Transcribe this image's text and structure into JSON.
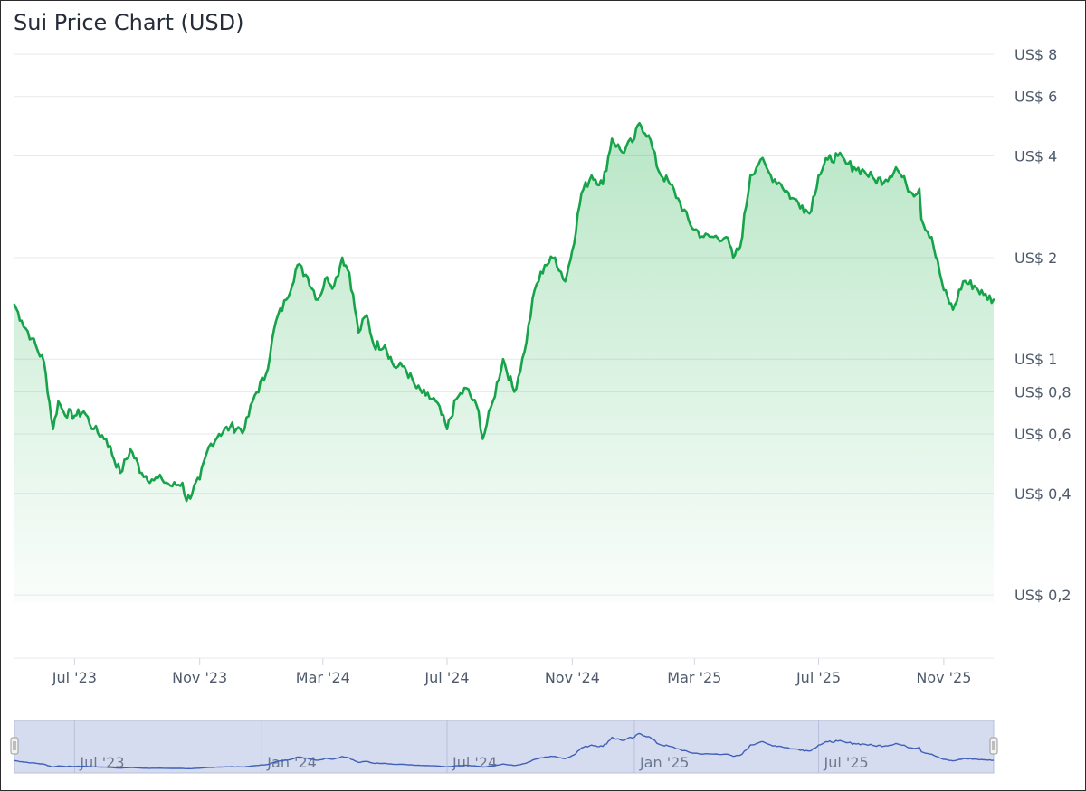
{
  "title": "Sui Price Chart (USD)",
  "colors": {
    "line": "#16a34a",
    "fill": "#22b14c",
    "grid": "#e6e9ee",
    "navigator_bg": "#d6dcef",
    "navigator_line": "#3f5fb8"
  },
  "chart_data": {
    "type": "line",
    "title": "Sui Price Chart (USD)",
    "xlabel": "",
    "ylabel": "",
    "yscale": "log",
    "ylim": [
      0.13,
      9
    ],
    "xlim": [
      "2023-05-03",
      "2025-12-20"
    ],
    "grid": true,
    "y_ticks": [
      {
        "value": 8,
        "label": "US$ 8"
      },
      {
        "value": 6,
        "label": "US$ 6"
      },
      {
        "value": 4,
        "label": "US$ 4"
      },
      {
        "value": 2,
        "label": "US$ 2"
      },
      {
        "value": 1,
        "label": "US$ 1"
      },
      {
        "value": 0.8,
        "label": "US$ 0,8"
      },
      {
        "value": 0.6,
        "label": "US$ 0,6"
      },
      {
        "value": 0.4,
        "label": "US$ 0,4"
      },
      {
        "value": 0.2,
        "label": "US$ 0,2"
      }
    ],
    "x_ticks": [
      {
        "date": "2023-07-01",
        "label": "Jul '23"
      },
      {
        "date": "2023-11-01",
        "label": "Nov '23"
      },
      {
        "date": "2024-03-01",
        "label": "Mar '24"
      },
      {
        "date": "2024-07-01",
        "label": "Jul '24"
      },
      {
        "date": "2024-11-01",
        "label": "Nov '24"
      },
      {
        "date": "2025-03-01",
        "label": "Mar '25"
      },
      {
        "date": "2025-07-01",
        "label": "Jul '25"
      },
      {
        "date": "2025-11-01",
        "label": "Nov '25"
      }
    ],
    "series": [
      {
        "x": [
          "2023-05-03",
          "2023-05-10",
          "2023-05-20",
          "2023-06-01",
          "2023-06-10",
          "2023-06-15",
          "2023-06-20",
          "2023-07-01",
          "2023-07-10",
          "2023-07-20",
          "2023-08-01",
          "2023-08-15",
          "2023-08-25",
          "2023-09-05",
          "2023-09-15",
          "2023-09-25",
          "2023-10-05",
          "2023-10-15",
          "2023-10-19",
          "2023-11-01",
          "2023-11-10",
          "2023-11-20",
          "2023-12-01",
          "2023-12-15",
          "2023-12-25",
          "2024-01-05",
          "2024-01-15",
          "2024-01-25",
          "2024-02-05",
          "2024-02-15",
          "2024-02-25",
          "2024-03-05",
          "2024-03-12",
          "2024-03-20",
          "2024-03-27",
          "2024-04-05",
          "2024-04-13",
          "2024-04-20",
          "2024-05-01",
          "2024-05-10",
          "2024-05-20",
          "2024-06-01",
          "2024-06-10",
          "2024-06-20",
          "2024-07-01",
          "2024-07-10",
          "2024-07-20",
          "2024-08-01",
          "2024-08-05",
          "2024-08-15",
          "2024-08-25",
          "2024-09-05",
          "2024-09-15",
          "2024-09-25",
          "2024-10-05",
          "2024-10-15",
          "2024-10-25",
          "2024-11-01",
          "2024-11-10",
          "2024-11-20",
          "2024-12-01",
          "2024-12-10",
          "2024-12-20",
          "2025-01-01",
          "2025-01-06",
          "2025-01-15",
          "2025-01-25",
          "2025-02-05",
          "2025-02-15",
          "2025-02-25",
          "2025-03-10",
          "2025-03-20",
          "2025-04-01",
          "2025-04-08",
          "2025-04-15",
          "2025-04-25",
          "2025-05-05",
          "2025-05-15",
          "2025-05-25",
          "2025-06-05",
          "2025-06-15",
          "2025-06-22",
          "2025-07-01",
          "2025-07-10",
          "2025-07-20",
          "2025-07-28",
          "2025-08-05",
          "2025-08-15",
          "2025-08-25",
          "2025-09-05",
          "2025-09-15",
          "2025-09-25",
          "2025-10-01",
          "2025-10-08",
          "2025-10-10",
          "2025-10-20",
          "2025-11-01",
          "2025-11-10",
          "2025-11-20",
          "2025-12-01",
          "2025-12-10",
          "2025-12-20"
        ],
        "y": [
          1.45,
          1.3,
          1.15,
          0.98,
          0.62,
          0.75,
          0.7,
          0.68,
          0.7,
          0.62,
          0.58,
          0.46,
          0.54,
          0.46,
          0.44,
          0.44,
          0.42,
          0.43,
          0.38,
          0.44,
          0.55,
          0.6,
          0.63,
          0.62,
          0.78,
          0.9,
          1.3,
          1.5,
          1.9,
          1.75,
          1.5,
          1.75,
          1.65,
          2.0,
          1.8,
          1.2,
          1.35,
          1.1,
          1.1,
          0.95,
          0.95,
          0.82,
          0.78,
          0.75,
          0.62,
          0.76,
          0.82,
          0.7,
          0.58,
          0.75,
          1.0,
          0.8,
          1.05,
          1.6,
          1.9,
          2.0,
          1.7,
          2.1,
          3.1,
          3.5,
          3.3,
          4.5,
          4.1,
          4.5,
          5.0,
          4.6,
          3.6,
          3.3,
          2.9,
          2.5,
          2.3,
          2.3,
          2.3,
          2.0,
          2.15,
          3.5,
          3.9,
          3.5,
          3.3,
          3.0,
          2.85,
          2.7,
          3.5,
          3.9,
          4.0,
          3.8,
          3.7,
          3.6,
          3.4,
          3.4,
          3.7,
          3.3,
          3.1,
          3.2,
          2.6,
          2.3,
          1.6,
          1.4,
          1.7,
          1.65,
          1.55,
          1.5
        ]
      }
    ],
    "navigator": {
      "x_ticks": [
        {
          "date": "2023-07-01",
          "label": "Jul '23"
        },
        {
          "date": "2024-01-01",
          "label": "Jan '24"
        },
        {
          "date": "2024-07-01",
          "label": "Jul '24"
        },
        {
          "date": "2025-01-01",
          "label": "Jan '25"
        },
        {
          "date": "2025-07-01",
          "label": "Jul '25"
        }
      ]
    }
  }
}
